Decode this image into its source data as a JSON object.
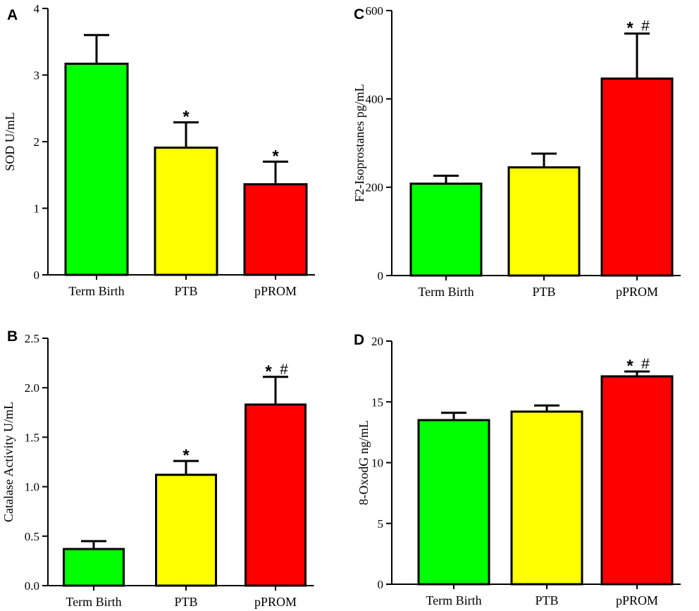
{
  "colors": {
    "term_birth": "#00ff00",
    "ptb": "#ffff00",
    "pprom": "#ff0000",
    "stroke": "#000000"
  },
  "chart_data": [
    {
      "panel": "A",
      "type": "bar",
      "categories": [
        "Term Birth",
        "PTB",
        "pPROM"
      ],
      "values": [
        3.17,
        1.91,
        1.36
      ],
      "errors": [
        0.43,
        0.38,
        0.34
      ],
      "annotations": [
        "",
        "*",
        "*"
      ],
      "ylabel": "SOD U/mL",
      "xlabel": "",
      "ylim": [
        0,
        4
      ],
      "yticks": [
        0,
        1,
        2,
        3,
        4
      ],
      "ytick_labels": [
        "0",
        "1",
        "2",
        "3",
        "4"
      ]
    },
    {
      "panel": "C",
      "type": "bar",
      "categories": [
        "Term Birth",
        "PTB",
        "pPROM"
      ],
      "values": [
        208,
        245,
        446
      ],
      "errors": [
        18,
        31,
        102
      ],
      "annotations": [
        "",
        "",
        "* #"
      ],
      "ylabel": "F2-Isoprostanes pg/mL",
      "xlabel": "",
      "ylim": [
        0,
        600
      ],
      "yticks": [
        0,
        200,
        400,
        600
      ],
      "ytick_labels": [
        "0",
        "200",
        "400",
        "600"
      ]
    },
    {
      "panel": "B",
      "type": "bar",
      "categories": [
        "Term Birth",
        "PTB",
        "pPROM"
      ],
      "values": [
        0.37,
        1.12,
        1.83
      ],
      "errors": [
        0.08,
        0.14,
        0.28
      ],
      "annotations": [
        "",
        "*",
        "* #"
      ],
      "ylabel": "Catalase Activity U/mL",
      "xlabel": "",
      "ylim": [
        0,
        2.5
      ],
      "yticks": [
        0,
        0.5,
        1.0,
        1.5,
        2.0,
        2.5
      ],
      "ytick_labels": [
        "0.0",
        "0.5",
        "1.0",
        "1.5",
        "2.0",
        "2.5"
      ]
    },
    {
      "panel": "D",
      "type": "bar",
      "categories": [
        "Term Birth",
        "PTB",
        "pPROM"
      ],
      "values": [
        13.5,
        14.2,
        17.1
      ],
      "errors": [
        0.6,
        0.5,
        0.4
      ],
      "annotations": [
        "",
        "",
        "* #"
      ],
      "ylabel": "8-OxodG ng/mL",
      "xlabel": "",
      "ylim": [
        0,
        20
      ],
      "yticks": [
        0,
        5,
        10,
        15,
        20
      ],
      "ytick_labels": [
        "0",
        "5",
        "10",
        "15",
        "20"
      ]
    }
  ]
}
